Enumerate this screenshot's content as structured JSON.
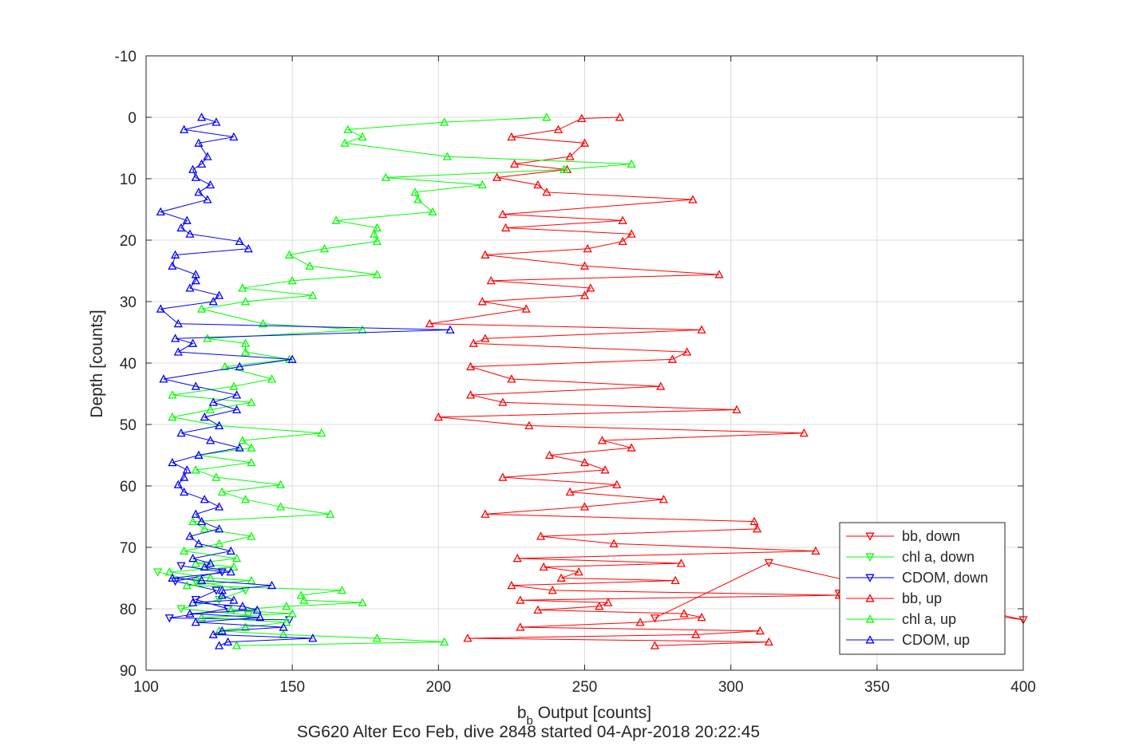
{
  "chart_data": {
    "type": "line",
    "title": "SG620 Alter Eco Feb, dive 2848 started 04-Apr-2018 20:22:45",
    "xlabel_main": "b",
    "xlabel_sub": "b",
    "xlabel_rest": " Output [counts]",
    "ylabel": "Depth [counts]",
    "xlim": [
      100,
      400
    ],
    "ylim": [
      -10,
      90
    ],
    "y_reversed": true,
    "xticks": [
      "100",
      "150",
      "200",
      "250",
      "300",
      "350",
      "400"
    ],
    "yticks": [
      "-10",
      "0",
      "10",
      "20",
      "30",
      "40",
      "50",
      "60",
      "70",
      "80",
      "90"
    ],
    "grid": true,
    "legend_position": "bottom-right",
    "series": [
      {
        "name": "bb, down",
        "color": "#ff0000",
        "marker": "triangle-down",
        "points": [
          [
            337,
            77.5
          ],
          [
            400,
            81.8
          ],
          [
            313,
            72.5
          ],
          [
            274,
            81.5
          ]
        ]
      },
      {
        "name": "chl a, down",
        "color": "#00ff00",
        "marker": "triangle-down",
        "points": [
          [
            104,
            74
          ],
          [
            117,
            75.5
          ],
          [
            134,
            77
          ],
          [
            125,
            78.5
          ],
          [
            112,
            80
          ],
          [
            135,
            81
          ]
        ]
      },
      {
        "name": "CDOM, down",
        "color": "#0000ff",
        "marker": "triangle-down",
        "points": [
          [
            112,
            73
          ],
          [
            126,
            74
          ],
          [
            110,
            75.5
          ],
          [
            124,
            77
          ],
          [
            117,
            78.5
          ],
          [
            128,
            80
          ],
          [
            108,
            81.5
          ],
          [
            149,
            81.8
          ]
        ]
      },
      {
        "name": "bb, up",
        "color": "#ff0000",
        "marker": "triangle-up",
        "points": [
          [
            262,
            0
          ],
          [
            249,
            0.2
          ],
          [
            241,
            2
          ],
          [
            225,
            3.2
          ],
          [
            250,
            4.2
          ],
          [
            245,
            6.4
          ],
          [
            226,
            7.6
          ],
          [
            244,
            8.5
          ],
          [
            220,
            9.8
          ],
          [
            234,
            11
          ],
          [
            237,
            12.2
          ],
          [
            287,
            13.4
          ],
          [
            222,
            15.8
          ],
          [
            263,
            16.8
          ],
          [
            223,
            18
          ],
          [
            266,
            19
          ],
          [
            263,
            20.2
          ],
          [
            251,
            21.4
          ],
          [
            216,
            22.4
          ],
          [
            250,
            24.2
          ],
          [
            296,
            25.6
          ],
          [
            218,
            26.6
          ],
          [
            252,
            27.8
          ],
          [
            250,
            29
          ],
          [
            215,
            30
          ],
          [
            230,
            31.2
          ],
          [
            197,
            33.6
          ],
          [
            290,
            34.6
          ],
          [
            216,
            36
          ],
          [
            212,
            36.8
          ],
          [
            285,
            38.2
          ],
          [
            280,
            39.4
          ],
          [
            211,
            40.6
          ],
          [
            225,
            42.6
          ],
          [
            276,
            43.8
          ],
          [
            211,
            45.2
          ],
          [
            222,
            46.4
          ],
          [
            302,
            47.6
          ],
          [
            200,
            48.8
          ],
          [
            231,
            50.2
          ],
          [
            325,
            51.4
          ],
          [
            256,
            52.6
          ],
          [
            266,
            53.8
          ],
          [
            238,
            55
          ],
          [
            250,
            56.2
          ],
          [
            257,
            57.4
          ],
          [
            222,
            58.6
          ],
          [
            261,
            59.8
          ],
          [
            245,
            61
          ],
          [
            277,
            62.2
          ],
          [
            250,
            63.4
          ],
          [
            216,
            64.6
          ],
          [
            308,
            65.8
          ],
          [
            309,
            67
          ],
          [
            235,
            68.2
          ],
          [
            260,
            69.4
          ],
          [
            329,
            70.6
          ],
          [
            227,
            71.8
          ],
          [
            283,
            72.6
          ],
          [
            236,
            73.2
          ],
          [
            248,
            74
          ],
          [
            242,
            75
          ],
          [
            281,
            75.4
          ],
          [
            225,
            76.2
          ],
          [
            239,
            77
          ],
          [
            337,
            77.8
          ],
          [
            228,
            78.6
          ],
          [
            258,
            79
          ],
          [
            255,
            79.6
          ],
          [
            234,
            80.2
          ],
          [
            284,
            80.8
          ],
          [
            290,
            81.4
          ],
          [
            269,
            82.2
          ],
          [
            228,
            83
          ],
          [
            310,
            83.6
          ],
          [
            288,
            84.2
          ],
          [
            210,
            84.8
          ],
          [
            313,
            85.4
          ],
          [
            274,
            86
          ]
        ]
      },
      {
        "name": "chl a, up",
        "color": "#00ff00",
        "marker": "triangle-up",
        "points": [
          [
            237,
            0
          ],
          [
            202,
            0.8
          ],
          [
            169,
            2
          ],
          [
            174,
            3.2
          ],
          [
            168,
            4.2
          ],
          [
            203,
            6.4
          ],
          [
            266,
            7.6
          ],
          [
            243,
            8.5
          ],
          [
            182,
            9.8
          ],
          [
            215,
            11
          ],
          [
            192,
            12.2
          ],
          [
            193,
            13.4
          ],
          [
            198,
            15.4
          ],
          [
            165,
            16.8
          ],
          [
            179,
            18
          ],
          [
            178,
            19
          ],
          [
            179,
            20.2
          ],
          [
            161,
            21.4
          ],
          [
            149,
            22.4
          ],
          [
            156,
            24.2
          ],
          [
            179,
            25.6
          ],
          [
            150,
            26.6
          ],
          [
            133,
            27.8
          ],
          [
            157,
            29
          ],
          [
            134,
            30
          ],
          [
            119,
            31.2
          ],
          [
            140,
            33.6
          ],
          [
            174,
            34.6
          ],
          [
            121,
            36
          ],
          [
            134,
            36.8
          ],
          [
            134,
            38.2
          ],
          [
            149,
            39.4
          ],
          [
            127,
            40.6
          ],
          [
            143,
            42.6
          ],
          [
            130,
            43.8
          ],
          [
            109,
            45.2
          ],
          [
            136,
            46.4
          ],
          [
            122,
            47.6
          ],
          [
            109,
            48.8
          ],
          [
            125,
            50.2
          ],
          [
            160,
            51.4
          ],
          [
            133,
            52.6
          ],
          [
            136,
            53.8
          ],
          [
            118,
            55
          ],
          [
            136,
            56.2
          ],
          [
            117,
            57.4
          ],
          [
            124,
            58.6
          ],
          [
            146,
            59.8
          ],
          [
            126,
            61
          ],
          [
            134,
            62.2
          ],
          [
            146,
            63.4
          ],
          [
            163,
            64.6
          ],
          [
            116,
            65.8
          ],
          [
            120,
            67
          ],
          [
            136,
            68.2
          ],
          [
            125,
            69.4
          ],
          [
            113,
            70.6
          ],
          [
            131,
            71.8
          ],
          [
            117,
            72.6
          ],
          [
            130,
            73.2
          ],
          [
            108,
            74
          ],
          [
            122,
            75
          ],
          [
            136,
            75.4
          ],
          [
            114,
            76.2
          ],
          [
            167,
            77
          ],
          [
            153,
            77.8
          ],
          [
            154,
            78.6
          ],
          [
            174,
            79
          ],
          [
            148,
            79.6
          ],
          [
            129,
            80.2
          ],
          [
            150,
            80.8
          ],
          [
            119,
            81.4
          ],
          [
            148,
            82.2
          ],
          [
            134,
            83
          ],
          [
            125,
            83.6
          ],
          [
            147,
            84.2
          ],
          [
            179,
            84.8
          ],
          [
            202,
            85.4
          ],
          [
            131,
            86
          ]
        ]
      },
      {
        "name": "CDOM, up",
        "color": "#0000ff",
        "marker": "triangle-up",
        "points": [
          [
            119,
            0
          ],
          [
            124,
            0.8
          ],
          [
            113,
            2
          ],
          [
            130,
            3.2
          ],
          [
            118,
            4.2
          ],
          [
            121,
            6.4
          ],
          [
            119,
            7.6
          ],
          [
            116,
            8.5
          ],
          [
            117,
            9.8
          ],
          [
            122,
            11
          ],
          [
            118,
            12.2
          ],
          [
            121,
            13.4
          ],
          [
            105,
            15.4
          ],
          [
            114,
            16.8
          ],
          [
            112,
            18
          ],
          [
            115,
            19
          ],
          [
            132,
            20.2
          ],
          [
            135,
            21.4
          ],
          [
            110,
            22.4
          ],
          [
            109,
            24.2
          ],
          [
            117,
            25.6
          ],
          [
            117,
            26.6
          ],
          [
            115,
            27.8
          ],
          [
            125,
            29
          ],
          [
            123,
            30
          ],
          [
            105,
            31.2
          ],
          [
            111,
            33.6
          ],
          [
            204,
            34.6
          ],
          [
            110,
            36
          ],
          [
            116,
            36.8
          ],
          [
            111,
            38.2
          ],
          [
            150,
            39.4
          ],
          [
            132,
            40.6
          ],
          [
            106,
            42.6
          ],
          [
            117,
            43.8
          ],
          [
            131,
            45.2
          ],
          [
            123,
            46.4
          ],
          [
            131,
            47.6
          ],
          [
            120,
            48.8
          ],
          [
            125,
            50.2
          ],
          [
            112,
            51.4
          ],
          [
            122,
            52.6
          ],
          [
            132,
            53.8
          ],
          [
            118,
            55
          ],
          [
            109,
            56.2
          ],
          [
            114,
            57.4
          ],
          [
            113,
            58.6
          ],
          [
            111,
            59.8
          ],
          [
            113,
            61
          ],
          [
            120,
            62.2
          ],
          [
            125,
            63.4
          ],
          [
            117,
            64.6
          ],
          [
            119,
            65.8
          ],
          [
            125,
            67
          ],
          [
            115,
            68.2
          ],
          [
            118,
            69.4
          ],
          [
            129,
            70.6
          ],
          [
            116,
            71.8
          ],
          [
            122,
            72.6
          ],
          [
            120,
            73.2
          ],
          [
            129,
            74
          ],
          [
            109,
            75
          ],
          [
            119,
            75.4
          ],
          [
            143,
            76.2
          ],
          [
            126,
            77
          ],
          [
            126,
            77.8
          ],
          [
            130,
            78.6
          ],
          [
            116,
            79
          ],
          [
            133,
            79.6
          ],
          [
            138,
            80.2
          ],
          [
            115,
            80.8
          ],
          [
            139,
            81.4
          ],
          [
            117,
            82.2
          ],
          [
            147,
            83
          ],
          [
            126,
            83.6
          ],
          [
            123,
            84.2
          ],
          [
            157,
            84.8
          ],
          [
            128,
            85.4
          ],
          [
            125,
            86
          ]
        ]
      }
    ]
  }
}
